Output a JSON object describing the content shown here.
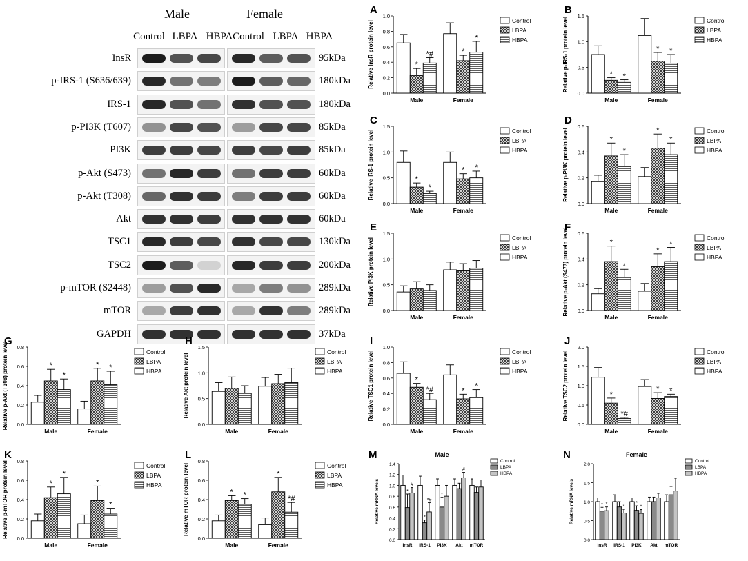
{
  "western_blot": {
    "sex_headers": [
      "Male",
      "Female"
    ],
    "lanes": [
      "Control",
      "LBPA",
      "HBPA",
      "Control",
      "LBPA",
      "HBPA"
    ],
    "rows": [
      {
        "protein": "InsR",
        "kda": "95kDa",
        "intensity": [
          1.0,
          0.75,
          0.8,
          0.95,
          0.7,
          0.75
        ]
      },
      {
        "protein": "p-IRS-1 (S636/639)",
        "kda": "180kDa",
        "intensity": [
          0.95,
          0.6,
          0.55,
          1.0,
          0.7,
          0.65
        ]
      },
      {
        "protein": "IRS-1",
        "kda": "180kDa",
        "intensity": [
          0.95,
          0.75,
          0.6,
          0.9,
          0.75,
          0.75
        ]
      },
      {
        "protein": "p-PI3K (T607)",
        "kda": "85kDa",
        "intensity": [
          0.45,
          0.8,
          0.75,
          0.4,
          0.8,
          0.8
        ]
      },
      {
        "protein": "PI3K",
        "kda": "85kDa",
        "intensity": [
          0.85,
          0.85,
          0.8,
          0.85,
          0.8,
          0.85
        ]
      },
      {
        "protein": "p-Akt (S473)",
        "kda": "60kDa",
        "intensity": [
          0.6,
          0.95,
          0.85,
          0.6,
          0.85,
          0.85
        ]
      },
      {
        "protein": "p-Akt (T308)",
        "kda": "60kDa",
        "intensity": [
          0.65,
          0.9,
          0.85,
          0.55,
          0.85,
          0.85
        ]
      },
      {
        "protein": "Akt",
        "kda": "60kDa",
        "intensity": [
          0.9,
          0.9,
          0.85,
          0.9,
          0.9,
          0.9
        ]
      },
      {
        "protein": "TSC1",
        "kda": "130kDa",
        "intensity": [
          0.95,
          0.85,
          0.8,
          0.9,
          0.8,
          0.8
        ]
      },
      {
        "protein": "TSC2",
        "kda": "200kDa",
        "intensity": [
          1.0,
          0.7,
          0.15,
          0.95,
          0.85,
          0.85
        ]
      },
      {
        "protein": "p-mTOR (S2448)",
        "kda": "289kDa",
        "intensity": [
          0.4,
          0.75,
          0.95,
          0.35,
          0.55,
          0.45
        ]
      },
      {
        "protein": "mTOR",
        "kda": "289kDa",
        "intensity": [
          0.35,
          0.85,
          0.9,
          0.35,
          0.9,
          0.55
        ]
      },
      {
        "protein": "GAPDH",
        "kda": "37kDa",
        "intensity": [
          0.9,
          0.9,
          0.9,
          0.9,
          0.9,
          0.9
        ]
      }
    ]
  },
  "colors": {
    "control": "#ffffff",
    "lbpa": "#cfcfcf",
    "hbpa": "#f2f2f2",
    "mrna_lbpa": "#8a8a8a",
    "mrna_hbpa": "#c4c4c4"
  },
  "chart_data": [
    {
      "id": "A",
      "type": "bar",
      "letter": "A",
      "ylabel": "Relative InsR protein level",
      "categories": [
        "Male",
        "Female"
      ],
      "ylim": [
        0,
        1.0
      ],
      "yticks": [
        "0.0",
        "0.2",
        "0.4",
        "0.6",
        "0.8",
        "1.0"
      ],
      "series": [
        {
          "name": "Control",
          "values": [
            0.65,
            0.77
          ],
          "err": [
            0.11,
            0.14
          ],
          "ann": [
            "",
            ""
          ]
        },
        {
          "name": "LBPA",
          "values": [
            0.23,
            0.42
          ],
          "err": [
            0.09,
            0.07
          ],
          "ann": [
            "*",
            "*"
          ]
        },
        {
          "name": "HBPA",
          "values": [
            0.39,
            0.53
          ],
          "err": [
            0.07,
            0.14
          ],
          "ann": [
            "*#",
            "*"
          ]
        }
      ]
    },
    {
      "id": "B",
      "type": "bar",
      "letter": "B",
      "ylabel": "Relative p-IRS-1 protein level",
      "categories": [
        "Male",
        "Female"
      ],
      "ylim": [
        0,
        1.5
      ],
      "yticks": [
        "0.0",
        "0.5",
        "1.0",
        "1.5"
      ],
      "series": [
        {
          "name": "Control",
          "values": [
            0.75,
            1.12
          ],
          "err": [
            0.17,
            0.33
          ],
          "ann": [
            "",
            ""
          ]
        },
        {
          "name": "LBPA",
          "values": [
            0.25,
            0.62
          ],
          "err": [
            0.05,
            0.17
          ],
          "ann": [
            "*",
            "*"
          ]
        },
        {
          "name": "HBPA",
          "values": [
            0.21,
            0.58
          ],
          "err": [
            0.05,
            0.17
          ],
          "ann": [
            "*",
            "*"
          ]
        }
      ]
    },
    {
      "id": "C",
      "type": "bar",
      "letter": "C",
      "ylabel": "Relative IRS-1 protein level",
      "categories": [
        "Male",
        "Female"
      ],
      "ylim": [
        0,
        1.5
      ],
      "yticks": [
        "0.0",
        "0.5",
        "1.0",
        "1.5"
      ],
      "series": [
        {
          "name": "Control",
          "values": [
            0.8,
            0.8
          ],
          "err": [
            0.22,
            0.2
          ],
          "ann": [
            "",
            ""
          ]
        },
        {
          "name": "LBPA",
          "values": [
            0.32,
            0.48
          ],
          "err": [
            0.08,
            0.1
          ],
          "ann": [
            "*",
            "*"
          ]
        },
        {
          "name": "HBPA",
          "values": [
            0.2,
            0.5
          ],
          "err": [
            0.04,
            0.13
          ],
          "ann": [
            "*",
            "*"
          ]
        }
      ]
    },
    {
      "id": "D",
      "type": "bar",
      "letter": "D",
      "ylabel": "Relative p-PI3K protein level",
      "categories": [
        "Male",
        "Female"
      ],
      "ylim": [
        0,
        0.6
      ],
      "yticks": [
        "0.0",
        "0.2",
        "0.4",
        "0.6"
      ],
      "series": [
        {
          "name": "Control",
          "values": [
            0.17,
            0.21
          ],
          "err": [
            0.05,
            0.07
          ],
          "ann": [
            "",
            ""
          ]
        },
        {
          "name": "LBPA",
          "values": [
            0.37,
            0.43
          ],
          "err": [
            0.1,
            0.11
          ],
          "ann": [
            "*",
            "*"
          ]
        },
        {
          "name": "HBPA",
          "values": [
            0.29,
            0.38
          ],
          "err": [
            0.09,
            0.09
          ],
          "ann": [
            "*",
            "*"
          ]
        }
      ]
    },
    {
      "id": "E",
      "type": "bar",
      "letter": "E",
      "ylabel": "Relative PI3K protein level",
      "categories": [
        "Male",
        "Female"
      ],
      "ylim": [
        0,
        1.5
      ],
      "yticks": [
        "0.0",
        "0.5",
        "1.0",
        "1.5"
      ],
      "series": [
        {
          "name": "Control",
          "values": [
            0.36,
            0.79
          ],
          "err": [
            0.12,
            0.15
          ],
          "ann": [
            "",
            ""
          ]
        },
        {
          "name": "LBPA",
          "values": [
            0.42,
            0.77
          ],
          "err": [
            0.14,
            0.14
          ],
          "ann": [
            "",
            ""
          ]
        },
        {
          "name": "HBPA",
          "values": [
            0.39,
            0.82
          ],
          "err": [
            0.11,
            0.15
          ],
          "ann": [
            "",
            ""
          ]
        }
      ]
    },
    {
      "id": "F",
      "type": "bar",
      "letter": "F",
      "ylabel": "Relative p-Akt (S473) protein level",
      "categories": [
        "Male",
        "Female"
      ],
      "ylim": [
        0,
        0.6
      ],
      "yticks": [
        "0.0",
        "0.2",
        "0.4",
        "0.6"
      ],
      "series": [
        {
          "name": "Control",
          "values": [
            0.13,
            0.15
          ],
          "err": [
            0.04,
            0.06
          ],
          "ann": [
            "",
            ""
          ]
        },
        {
          "name": "LBPA",
          "values": [
            0.38,
            0.34
          ],
          "err": [
            0.12,
            0.1
          ],
          "ann": [
            "*",
            "*"
          ]
        },
        {
          "name": "HBPA",
          "values": [
            0.26,
            0.38
          ],
          "err": [
            0.06,
            0.11
          ],
          "ann": [
            "*",
            "*"
          ]
        }
      ]
    },
    {
      "id": "G",
      "type": "bar",
      "letter": "G",
      "ylabel": "Relative p-Akt (T308) protein level",
      "categories": [
        "Male",
        "Female"
      ],
      "ylim": [
        0,
        0.8
      ],
      "yticks": [
        "0.0",
        "0.2",
        "0.4",
        "0.6",
        "0.8"
      ],
      "series": [
        {
          "name": "Control",
          "values": [
            0.23,
            0.16
          ],
          "err": [
            0.07,
            0.08
          ],
          "ann": [
            "",
            ""
          ]
        },
        {
          "name": "LBPA",
          "values": [
            0.45,
            0.45
          ],
          "err": [
            0.12,
            0.13
          ],
          "ann": [
            "*",
            "*"
          ]
        },
        {
          "name": "HBPA",
          "values": [
            0.36,
            0.41
          ],
          "err": [
            0.11,
            0.14
          ],
          "ann": [
            "*",
            "*"
          ]
        }
      ]
    },
    {
      "id": "H",
      "type": "bar",
      "letter": "H",
      "ylabel": "Relative Akt protein level",
      "categories": [
        "Male",
        "Female"
      ],
      "ylim": [
        0,
        1.5
      ],
      "yticks": [
        "0.0",
        "0.5",
        "1.0",
        "1.5"
      ],
      "series": [
        {
          "name": "Control",
          "values": [
            0.64,
            0.74
          ],
          "err": [
            0.17,
            0.17
          ],
          "ann": [
            "",
            ""
          ]
        },
        {
          "name": "LBPA",
          "values": [
            0.7,
            0.79
          ],
          "err": [
            0.22,
            0.18
          ],
          "ann": [
            "",
            ""
          ]
        },
        {
          "name": "HBPA",
          "values": [
            0.61,
            0.81
          ],
          "err": [
            0.14,
            0.28
          ],
          "ann": [
            "",
            ""
          ]
        }
      ]
    },
    {
      "id": "I",
      "type": "bar",
      "letter": "I",
      "ylabel": "Relative TSC1 protein level",
      "categories": [
        "Male",
        "Female"
      ],
      "ylim": [
        0,
        1.0
      ],
      "yticks": [
        "0.0",
        "0.2",
        "0.4",
        "0.6",
        "0.8",
        "1.0"
      ],
      "series": [
        {
          "name": "Control",
          "values": [
            0.66,
            0.64
          ],
          "err": [
            0.15,
            0.13
          ],
          "ann": [
            "",
            ""
          ]
        },
        {
          "name": "LBPA",
          "values": [
            0.48,
            0.33
          ],
          "err": [
            0.05,
            0.06
          ],
          "ann": [
            "*",
            "*"
          ]
        },
        {
          "name": "HBPA",
          "values": [
            0.32,
            0.35
          ],
          "err": [
            0.08,
            0.1
          ],
          "ann": [
            "*#",
            "*"
          ]
        }
      ]
    },
    {
      "id": "J",
      "type": "bar",
      "letter": "J",
      "ylabel": "Relative TSC2 protein level",
      "categories": [
        "Male",
        "Female"
      ],
      "ylim": [
        0,
        2.0
      ],
      "yticks": [
        "0.0",
        "0.5",
        "1.0",
        "1.5",
        "2.0"
      ],
      "series": [
        {
          "name": "Control",
          "values": [
            1.22,
            0.98
          ],
          "err": [
            0.25,
            0.18
          ],
          "ann": [
            "",
            ""
          ]
        },
        {
          "name": "LBPA",
          "values": [
            0.55,
            0.67
          ],
          "err": [
            0.13,
            0.15
          ],
          "ann": [
            "*",
            "*"
          ]
        },
        {
          "name": "HBPA",
          "values": [
            0.15,
            0.72
          ],
          "err": [
            0.03,
            0.06
          ],
          "ann": [
            "*#",
            "*"
          ]
        }
      ]
    },
    {
      "id": "K",
      "type": "bar",
      "letter": "K",
      "ylabel": "Relative p-mTOR protein level",
      "categories": [
        "Male",
        "Female"
      ],
      "ylim": [
        0,
        0.8
      ],
      "yticks": [
        "0.0",
        "0.2",
        "0.4",
        "0.6",
        "0.8"
      ],
      "series": [
        {
          "name": "Control",
          "values": [
            0.18,
            0.15
          ],
          "err": [
            0.07,
            0.09
          ],
          "ann": [
            "",
            ""
          ]
        },
        {
          "name": "LBPA",
          "values": [
            0.42,
            0.39
          ],
          "err": [
            0.11,
            0.15
          ],
          "ann": [
            "*",
            "*"
          ]
        },
        {
          "name": "HBPA",
          "values": [
            0.46,
            0.25
          ],
          "err": [
            0.17,
            0.06
          ],
          "ann": [
            "*",
            "*"
          ]
        }
      ]
    },
    {
      "id": "L",
      "type": "bar",
      "letter": "L",
      "ylabel": "Relative mTOR protein level",
      "categories": [
        "Male",
        "Female"
      ],
      "ylim": [
        0,
        0.8
      ],
      "yticks": [
        "0.0",
        "0.2",
        "0.4",
        "0.6",
        "0.8"
      ],
      "series": [
        {
          "name": "Control",
          "values": [
            0.18,
            0.14
          ],
          "err": [
            0.06,
            0.07
          ],
          "ann": [
            "",
            ""
          ]
        },
        {
          "name": "LBPA",
          "values": [
            0.39,
            0.48
          ],
          "err": [
            0.05,
            0.15
          ],
          "ann": [
            "*",
            "*"
          ]
        },
        {
          "name": "HBPA",
          "values": [
            0.35,
            0.27
          ],
          "err": [
            0.06,
            0.1
          ],
          "ann": [
            "*",
            "*#"
          ]
        }
      ]
    },
    {
      "id": "M",
      "type": "bar",
      "letter": "M",
      "mrna": true,
      "title": "Male",
      "ylabel": "Relative mRNA levels",
      "categories": [
        "InsR",
        "IRS-1",
        "PI3K",
        "Akt",
        "mTOR"
      ],
      "ylim": [
        0,
        1.4
      ],
      "yticks": [
        "0.0",
        "0.2",
        "0.4",
        "0.6",
        "0.8",
        "1.0",
        "1.2",
        "1.4"
      ],
      "series": [
        {
          "name": "Control",
          "values": [
            1.0,
            1.0,
            1.0,
            1.0,
            1.0
          ],
          "err": [
            0.19,
            0.17,
            0.12,
            0.12,
            0.12
          ],
          "ann": [
            "",
            "",
            "",
            "",
            ""
          ]
        },
        {
          "name": "LBPA",
          "values": [
            0.59,
            0.31,
            0.6,
            0.94,
            0.87
          ],
          "err": [
            0.25,
            0.05,
            0.18,
            0.1,
            0.1
          ],
          "ann": [
            "*",
            "*",
            "*",
            "",
            ""
          ]
        },
        {
          "name": "HBPA",
          "values": [
            0.86,
            0.51,
            0.8,
            1.14,
            0.97
          ],
          "err": [
            0.1,
            0.17,
            0.2,
            0.1,
            0.13
          ],
          "ann": [
            "#",
            "*#",
            "",
            "#",
            ""
          ]
        }
      ]
    },
    {
      "id": "N",
      "type": "bar",
      "letter": "N",
      "mrna": true,
      "title": "Female",
      "ylabel": "Relative mRNA levels",
      "categories": [
        "InsR",
        "IRS-1",
        "PI3K",
        "Akt",
        "mTOR"
      ],
      "ylim": [
        0,
        2.0
      ],
      "yticks": [
        "0.0",
        "0.5",
        "1.0",
        "1.5",
        "2.0"
      ],
      "series": [
        {
          "name": "Control",
          "values": [
            1.0,
            1.0,
            1.0,
            1.0,
            1.0
          ],
          "err": [
            0.1,
            0.18,
            0.1,
            0.12,
            0.18
          ],
          "ann": [
            "",
            "",
            "",
            "",
            ""
          ]
        },
        {
          "name": "LBPA",
          "values": [
            0.75,
            0.86,
            0.77,
            1.0,
            1.18
          ],
          "err": [
            0.1,
            0.14,
            0.12,
            0.12,
            0.22
          ],
          "ann": [
            "*",
            "",
            "*",
            "",
            ""
          ]
        },
        {
          "name": "HBPA",
          "values": [
            0.76,
            0.7,
            0.69,
            1.1,
            1.28
          ],
          "err": [
            0.1,
            0.1,
            0.1,
            0.12,
            0.34
          ],
          "ann": [
            "*",
            "*",
            "*",
            "",
            ""
          ]
        }
      ]
    }
  ]
}
